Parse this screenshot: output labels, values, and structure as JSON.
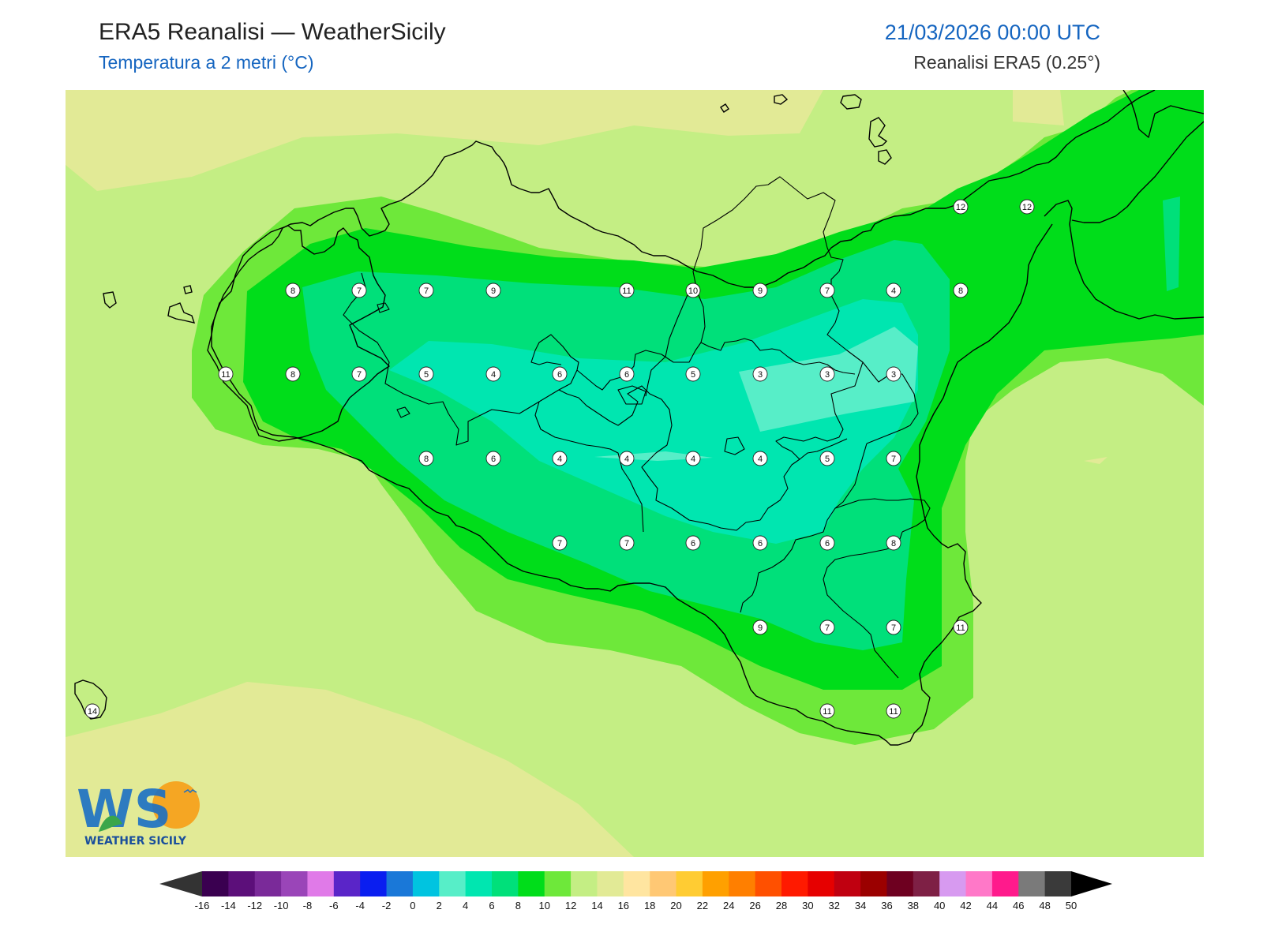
{
  "header": {
    "title": "ERA5 Reanalisi — WeatherSicily",
    "subtitle": "Temperatura a 2 metri (°C)",
    "datetime": "21/03/2026 00:00 UTC",
    "source": "Reanalisi ERA5 (0.25°)"
  },
  "logo": {
    "letters": "WS",
    "text": "WEATHER SICILY"
  },
  "colors": {
    "t4": "#00e6b0",
    "t6": "#00e07a",
    "t8": "#00dd1a",
    "t10": "#6ee83a",
    "t12": "#c4ee84",
    "t14": "#e2ea96",
    "t2": "#57eec8",
    "coast": "#000000"
  },
  "stations": [
    {
      "v": "12"
    },
    {
      "v": "12"
    },
    {
      "v": "8"
    },
    {
      "v": "7"
    },
    {
      "v": "7"
    },
    {
      "v": "9"
    },
    {
      "v": "11"
    },
    {
      "v": "10"
    },
    {
      "v": "9"
    },
    {
      "v": "7"
    },
    {
      "v": "4"
    },
    {
      "v": "8"
    },
    {
      "v": "11"
    },
    {
      "v": "8"
    },
    {
      "v": "7"
    },
    {
      "v": "5"
    },
    {
      "v": "4"
    },
    {
      "v": "6"
    },
    {
      "v": "6"
    },
    {
      "v": "5"
    },
    {
      "v": "3"
    },
    {
      "v": "3"
    },
    {
      "v": "3"
    },
    {
      "v": "8"
    },
    {
      "v": "6"
    },
    {
      "v": "4"
    },
    {
      "v": "4"
    },
    {
      "v": "4"
    },
    {
      "v": "4"
    },
    {
      "v": "5"
    },
    {
      "v": "7"
    },
    {
      "v": "7"
    },
    {
      "v": "7"
    },
    {
      "v": "6"
    },
    {
      "v": "6"
    },
    {
      "v": "6"
    },
    {
      "v": "8"
    },
    {
      "v": "9"
    },
    {
      "v": "7"
    },
    {
      "v": "7"
    },
    {
      "v": "11"
    },
    {
      "v": "14"
    },
    {
      "v": "11"
    },
    {
      "v": "11"
    }
  ],
  "legend": {
    "ticks": [
      "-16",
      "-14",
      "-12",
      "-10",
      "-8",
      "-6",
      "-4",
      "-2",
      "0",
      "2",
      "4",
      "6",
      "8",
      "10",
      "12",
      "14",
      "16",
      "18",
      "20",
      "22",
      "24",
      "26",
      "28",
      "30",
      "32",
      "34",
      "36",
      "38",
      "40",
      "42",
      "44",
      "46",
      "48",
      "50"
    ],
    "colors": [
      "#3a0050",
      "#5c0f7a",
      "#7a2a99",
      "#9a45b8",
      "#e07ae8",
      "#5a25c8",
      "#0a1ef0",
      "#1a78d8",
      "#00c4e0",
      "#57eec8",
      "#00e6b0",
      "#00e07a",
      "#00dd1a",
      "#6ee83a",
      "#c4ee84",
      "#e2ea96",
      "#ffe5a0",
      "#ffc874",
      "#ffcc33",
      "#ffa000",
      "#ff7f00",
      "#ff5000",
      "#ff1a00",
      "#e60000",
      "#c00010",
      "#9b0000",
      "#6e0020",
      "#7e2045",
      "#d79af0",
      "#ff78c8",
      "#ff1a8c",
      "#7a7a7a",
      "#3a3a3a"
    ],
    "under_color": "#333333",
    "over_color": "#000000"
  }
}
